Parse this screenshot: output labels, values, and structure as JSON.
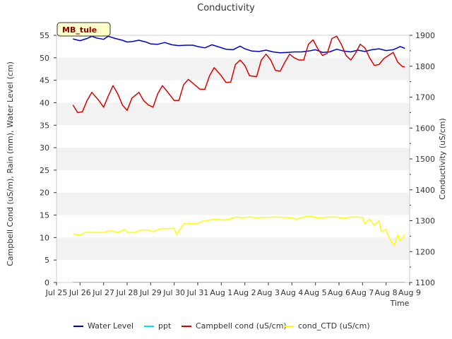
{
  "chart_data": {
    "type": "line",
    "title": "Conductivity",
    "station_label": "MB_tule",
    "xlabel": "Time",
    "ylabel_left": "Campbell Cond (uS/m), Rain (mm), Water Level (cm)",
    "ylabel_right": "Conductivity (uS/cm)",
    "xlim": [
      0,
      15
    ],
    "x_ticks": [
      0,
      1,
      2,
      3,
      4,
      5,
      6,
      7,
      8,
      9,
      10,
      11,
      12,
      13,
      14,
      15
    ],
    "x_tick_labels": [
      "Jul 25",
      "Jul 26",
      "Jul 27",
      "Jul 28",
      "Jul 29",
      "Jul 30",
      "Jul 31",
      "Aug 1",
      "Aug 2",
      "Aug 3",
      "Aug 4",
      "Aug 5",
      "Aug 6",
      "Aug 7",
      "Aug 8",
      "Aug 9"
    ],
    "ylim_left": [
      0,
      55
    ],
    "y_ticks_left": [
      0,
      5,
      10,
      15,
      20,
      25,
      30,
      35,
      40,
      45,
      50,
      55
    ],
    "ylim_right": [
      1100,
      1900
    ],
    "y_ticks_right": [
      1100,
      1200,
      1300,
      1400,
      1500,
      1600,
      1700,
      1800,
      1900
    ],
    "grid_bands": true,
    "legend_position": "bottom",
    "series": [
      {
        "name": "Water Level",
        "color": "#0000cc",
        "axis": "left",
        "x": [
          0.7,
          1.0,
          1.3,
          1.5,
          1.7,
          2.0,
          2.2,
          2.5,
          2.8,
          3.0,
          3.2,
          3.5,
          3.8,
          4.0,
          4.3,
          4.6,
          4.9,
          5.2,
          5.5,
          5.8,
          6.0,
          6.3,
          6.6,
          6.9,
          7.2,
          7.5,
          7.8,
          8.0,
          8.3,
          8.6,
          8.9,
          9.2,
          9.5,
          9.8,
          10.1,
          10.4,
          10.7,
          11.0,
          11.3,
          11.6,
          11.9,
          12.2,
          12.5,
          12.8,
          13.1,
          13.4,
          13.7,
          14.0,
          14.3,
          14.6,
          14.8
        ],
        "y": [
          54.2,
          53.8,
          54.3,
          54.8,
          54.4,
          54.1,
          54.8,
          54.3,
          53.9,
          53.5,
          53.6,
          53.9,
          53.5,
          53.1,
          53.0,
          53.4,
          52.9,
          52.7,
          52.8,
          52.8,
          52.5,
          52.2,
          52.9,
          52.4,
          51.9,
          51.8,
          52.6,
          52.0,
          51.5,
          51.4,
          51.7,
          51.3,
          51.1,
          51.2,
          51.3,
          51.3,
          51.5,
          51.8,
          51.2,
          51.3,
          51.9,
          51.5,
          51.3,
          51.7,
          51.4,
          51.8,
          52.0,
          51.6,
          51.8,
          52.5,
          52.1
        ]
      },
      {
        "name": "ppt",
        "color": "#00e5ee",
        "axis": "left",
        "x": [
          0.7,
          14.8
        ],
        "y": [
          0.05,
          0.05
        ]
      },
      {
        "name": "Campbell cond (uS/cm)",
        "color": "#dd0000",
        "axis": "left",
        "x": [
          0.7,
          0.9,
          1.1,
          1.3,
          1.5,
          1.8,
          2.0,
          2.2,
          2.4,
          2.6,
          2.8,
          3.0,
          3.2,
          3.5,
          3.7,
          3.9,
          4.1,
          4.3,
          4.5,
          4.7,
          5.0,
          5.2,
          5.4,
          5.6,
          5.8,
          6.1,
          6.3,
          6.5,
          6.7,
          7.0,
          7.2,
          7.4,
          7.6,
          7.8,
          8.0,
          8.2,
          8.5,
          8.7,
          8.9,
          9.1,
          9.3,
          9.5,
          9.7,
          9.9,
          10.1,
          10.3,
          10.5,
          10.7,
          10.9,
          11.1,
          11.3,
          11.5,
          11.7,
          11.9,
          12.1,
          12.3,
          12.5,
          12.7,
          12.9,
          13.1,
          13.3,
          13.5,
          13.7,
          13.9,
          14.1,
          14.3,
          14.5,
          14.7,
          14.8
        ],
        "y": [
          39.5,
          37.8,
          38.0,
          40.5,
          42.3,
          40.5,
          39.0,
          41.5,
          43.8,
          42.0,
          39.5,
          38.3,
          41.0,
          42.3,
          40.5,
          39.5,
          39.0,
          42.0,
          43.8,
          42.5,
          40.5,
          40.5,
          44.0,
          45.2,
          44.3,
          43.0,
          43.0,
          46.0,
          47.8,
          46.0,
          44.5,
          44.6,
          48.5,
          49.5,
          48.3,
          46.0,
          45.8,
          49.5,
          50.8,
          49.5,
          47.2,
          47.0,
          49.0,
          50.8,
          50.0,
          49.5,
          49.5,
          53.0,
          54.0,
          52.0,
          50.5,
          51.0,
          54.3,
          54.8,
          53.0,
          50.5,
          49.5,
          51.0,
          53.0,
          52.2,
          50.0,
          48.3,
          48.5,
          49.8,
          50.5,
          51.2,
          49.0,
          48.0,
          48.0
        ]
      },
      {
        "name": "cond_CTD (uS/cm)",
        "color": "#ffff00",
        "axis": "right",
        "x": [
          0.7,
          1.0,
          1.2,
          1.5,
          1.8,
          2.0,
          2.3,
          2.6,
          2.9,
          3.0,
          3.3,
          3.6,
          3.9,
          4.1,
          4.4,
          4.7,
          5.0,
          5.1,
          5.4,
          5.7,
          6.0,
          6.2,
          6.5,
          6.8,
          7.0,
          7.3,
          7.6,
          7.9,
          8.2,
          8.5,
          8.8,
          9.0,
          9.3,
          9.6,
          9.9,
          10.2,
          10.5,
          10.8,
          11.0,
          11.3,
          11.6,
          11.9,
          12.2,
          12.5,
          12.8,
          13.0,
          13.1,
          13.3,
          13.5,
          13.7,
          13.8,
          14.0,
          14.1,
          14.2,
          14.35,
          14.5,
          14.6,
          14.8
        ],
        "y": [
          1257,
          1253,
          1262,
          1262,
          1262,
          1262,
          1268,
          1262,
          1272,
          1262,
          1262,
          1270,
          1270,
          1265,
          1274,
          1274,
          1276,
          1255,
          1290,
          1290,
          1292,
          1298,
          1302,
          1305,
          1302,
          1304,
          1312,
          1310,
          1312,
          1310,
          1311,
          1311,
          1312,
          1311,
          1310,
          1305,
          1312,
          1315,
          1310,
          1310,
          1312,
          1312,
          1308,
          1312,
          1312,
          1310,
          1290,
          1305,
          1285,
          1300,
          1265,
          1272,
          1250,
          1235,
          1220,
          1255,
          1236,
          1255
        ]
      }
    ]
  },
  "legend": [
    {
      "label": "Water Level",
      "color": "#0000cc"
    },
    {
      "label": "ppt",
      "color": "#00e5ee"
    },
    {
      "label": "Campbell cond (uS/cm)",
      "color": "#dd0000"
    },
    {
      "label": "cond_CTD (uS/cm)",
      "color": "#ffff00"
    }
  ]
}
